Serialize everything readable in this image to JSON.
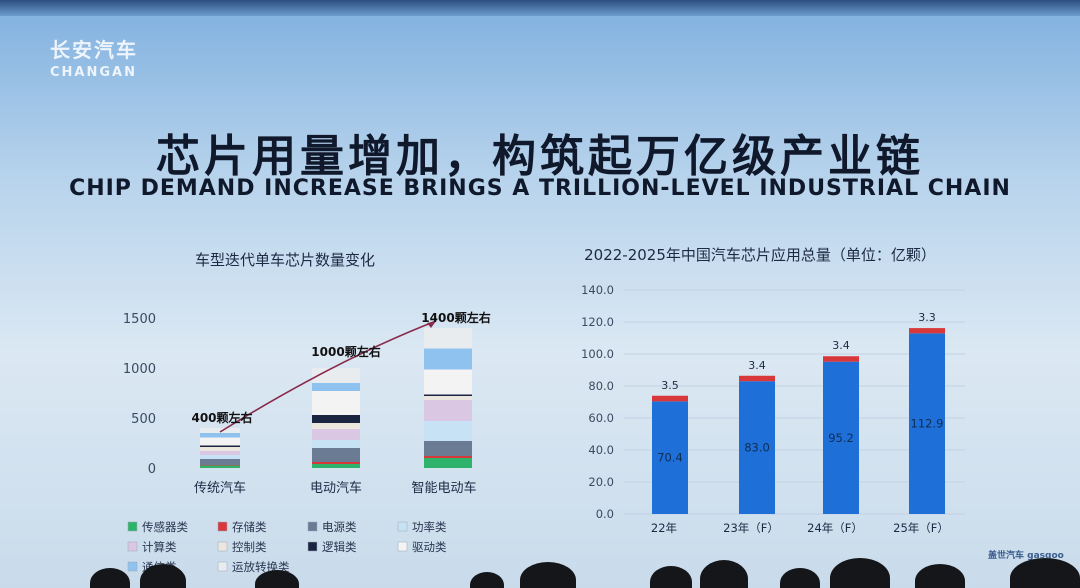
{
  "brand": {
    "name_cn": "长安汽车",
    "name_en": "CHANGAN"
  },
  "headline": {
    "cn": "芯片用量增加，构筑起万亿级产业链",
    "en": "CHIP DEMAND INCREASE BRINGS A TRILLION-LEVEL INDUSTRIAL CHAIN"
  },
  "watermark": "盖世汽车 gasgoo",
  "colors": {
    "bar_blue": "#1f6fd8",
    "bar_red": "#d9383a",
    "sensor": "#2fb36a",
    "storage": "#d9383a",
    "power_src": "#6a7b93",
    "power_dev": "#c8e2f5",
    "compute": "#d9c7e4",
    "control": "#ebe7df",
    "logic": "#1a2440",
    "drive": "#f3f3f3",
    "comm": "#8fc2ee",
    "transport": "#e8ecef"
  },
  "chart_data": [
    {
      "type": "bar",
      "stacked": true,
      "title": "车型迭代单车芯片数量变化",
      "categories": [
        "传统汽车",
        "电动汽车",
        "智能电动车"
      ],
      "ylim": [
        0,
        1500
      ],
      "yticks": [
        "0",
        "500",
        "1000",
        "1500"
      ],
      "annotations": [
        "400颗左右",
        "1000颗左右",
        "1400颗左右"
      ],
      "totals": [
        400,
        1000,
        1400
      ],
      "legend_position": "bottom",
      "series": [
        {
          "name": "传感器类",
          "color": "#2fb36a",
          "values": [
            25,
            40,
            100
          ]
        },
        {
          "name": "存储类",
          "color": "#d9383a",
          "values": [
            5,
            20,
            20
          ]
        },
        {
          "name": "电源类",
          "color": "#6a7b93",
          "values": [
            60,
            140,
            150
          ]
        },
        {
          "name": "功率类",
          "color": "#c8e2f5",
          "values": [
            40,
            80,
            200
          ]
        },
        {
          "name": "计算类",
          "color": "#d9c7e4",
          "values": [
            40,
            110,
            210
          ]
        },
        {
          "name": "控制类",
          "color": "#ebe7df",
          "values": [
            40,
            60,
            40
          ]
        },
        {
          "name": "逻辑类",
          "color": "#1a2440",
          "values": [
            15,
            80,
            15
          ]
        },
        {
          "name": "驱动类",
          "color": "#f3f3f3",
          "values": [
            80,
            240,
            250
          ]
        },
        {
          "name": "通信类",
          "color": "#8fc2ee",
          "values": [
            45,
            80,
            210
          ]
        },
        {
          "name": "运放转换类",
          "color": "#e8ecef",
          "values": [
            50,
            150,
            205
          ]
        }
      ]
    },
    {
      "type": "bar",
      "stacked": true,
      "title": "2022-2025年中国汽车芯片应用总量（单位：亿颗）",
      "categories": [
        "22年",
        "23年（F）",
        "24年（F）",
        "25年（F）"
      ],
      "ylim": [
        0,
        140
      ],
      "yticks": [
        "0.0",
        "20.0",
        "40.0",
        "60.0",
        "80.0",
        "100.0",
        "120.0",
        "140.0"
      ],
      "grid": true,
      "series": [
        {
          "color": "#1f6fd8",
          "values": [
            70.4,
            83.0,
            95.2,
            112.9
          ]
        },
        {
          "color": "#d9383a",
          "values": [
            3.5,
            3.4,
            3.4,
            3.3
          ]
        }
      ],
      "labels_blue": [
        "70.4",
        "83.0",
        "95.2",
        "112.9"
      ],
      "labels_red": [
        "3.5",
        "3.4",
        "3.4",
        "3.3"
      ]
    }
  ]
}
